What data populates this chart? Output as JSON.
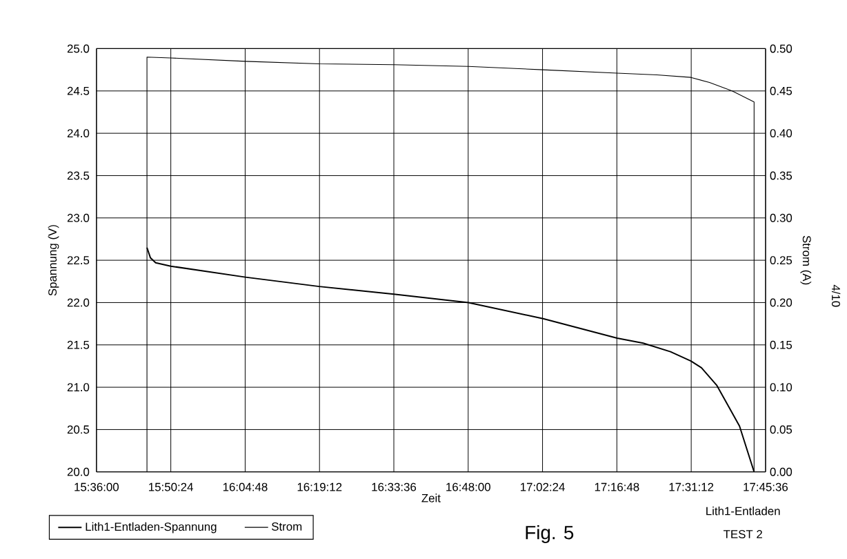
{
  "chart_data": {
    "type": "line",
    "xlabel": "Zeit",
    "ylabel": "Spannung (V)",
    "y2label": "Strom (A)",
    "annotations": [
      "Lith1-Entladen",
      "TEST 2",
      "Fig. 5",
      "4/10"
    ],
    "series": [
      {
        "name": "Lith1-Entladen-Spannung",
        "color": "#000000",
        "x": [
          15.763,
          15.774,
          15.791,
          15.84,
          16.081,
          16.319,
          16.56,
          16.801,
          17.042,
          17.281,
          17.365,
          17.453,
          17.519,
          17.553,
          17.603,
          17.641,
          17.676,
          17.723
        ],
        "values": [
          22.65,
          22.53,
          22.47,
          22.43,
          22.3,
          22.19,
          22.1,
          22.0,
          21.81,
          21.58,
          21.52,
          21.42,
          21.31,
          21.23,
          21.02,
          20.77,
          20.54,
          20.0
        ]
      },
      {
        "name": "Strom",
        "color": "#000000",
        "axis": "y2",
        "x": [
          15.763,
          15.763,
          15.84,
          16.081,
          16.319,
          16.56,
          16.801,
          17.042,
          17.281,
          17.409,
          17.519,
          17.579,
          17.652,
          17.723,
          17.723
        ],
        "values": [
          0.0,
          0.49,
          0.489,
          0.485,
          0.482,
          0.481,
          0.479,
          0.475,
          0.471,
          0.469,
          0.466,
          0.46,
          0.45,
          0.437,
          0.0
        ]
      }
    ],
    "xlim": [
      15.6,
      17.76
    ],
    "xticks": [
      {
        "value": 15.6,
        "label": "15:36:00"
      },
      {
        "value": 15.84,
        "label": "15:50:24"
      },
      {
        "value": 16.08,
        "label": "16:04:48"
      },
      {
        "value": 16.32,
        "label": "16:19:12"
      },
      {
        "value": 16.56,
        "label": "16:33:36"
      },
      {
        "value": 16.8,
        "label": "16:48:00"
      },
      {
        "value": 17.04,
        "label": "17:02:24"
      },
      {
        "value": 17.28,
        "label": "17:16:48"
      },
      {
        "value": 17.52,
        "label": "17:31:12"
      },
      {
        "value": 17.76,
        "label": "17:45:36"
      }
    ],
    "ylim": [
      20,
      25
    ],
    "yticks": [
      {
        "value": 20,
        "label": "20.0"
      },
      20.5,
      {
        "value": 21,
        "label": "21.0"
      },
      21.5,
      {
        "value": 22,
        "label": "22.0"
      },
      22.5,
      {
        "value": 23,
        "label": "23.0"
      },
      23.5,
      {
        "value": 24,
        "label": "24.0"
      },
      24.5,
      {
        "value": 25,
        "label": "25.0"
      }
    ],
    "y2lim": [
      0,
      0.5
    ],
    "y2ticks": [
      {
        "value": 0,
        "label": "0.00"
      },
      {
        "value": 0.05,
        "label": "0.05"
      },
      {
        "value": 0.1,
        "label": "0.10"
      },
      {
        "value": 0.15,
        "label": "0.15"
      },
      {
        "value": 0.2,
        "label": "0.20"
      },
      {
        "value": 0.25,
        "label": "0.25"
      },
      {
        "value": 0.3,
        "label": "0.30"
      },
      {
        "value": 0.35,
        "label": "0.35"
      },
      {
        "value": 0.4,
        "label": "0.40"
      },
      {
        "value": 0.45,
        "label": "0.45"
      },
      {
        "value": 0.5,
        "label": "0.50"
      }
    ],
    "grid": true,
    "legend": "bottom left",
    "marker": "none",
    "line_style": "solid"
  }
}
